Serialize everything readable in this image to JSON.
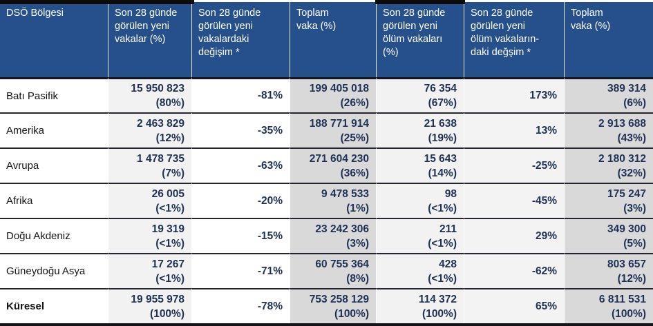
{
  "table": {
    "columns": [
      "DSÖ Bölgesi",
      "Son 28 günde\ngörülen yeni\nvakalar (%)",
      "Son 28 günde\ngörülen yeni\nvakalardaki\ndeğişim *",
      "Toplam\nvaka (%)",
      "Son 28 günde\ngörülen yeni\nölüm vakaları\n(%)",
      "Son 28 günde\ngörülen yeni\nölüm vakaların-\ndaki değşim *",
      "Toplam\nvaka (%)"
    ],
    "rows": [
      {
        "region": "Batı Pasifik",
        "new_cases": "15 950 823",
        "new_cases_share": "(80%)",
        "case_change": "-81%",
        "total_cases": "199 405 018",
        "total_cases_share": "(26%)",
        "new_deaths": "76 354",
        "new_deaths_share": "(67%)",
        "death_change": "173%",
        "total_deaths": "389 314",
        "total_deaths_share": "(6%)"
      },
      {
        "region": "Amerika",
        "new_cases": "2 463 829",
        "new_cases_share": "(12%)",
        "case_change": "-35%",
        "total_cases": "188 771 914",
        "total_cases_share": "(25%)",
        "new_deaths": "21 638",
        "new_deaths_share": "(19%)",
        "death_change": "13%",
        "total_deaths": "2 913 688",
        "total_deaths_share": "(43%)"
      },
      {
        "region": "Avrupa",
        "new_cases": "1 478 735",
        "new_cases_share": "(7%)",
        "case_change": "-63%",
        "total_cases": "271 604 230",
        "total_cases_share": "(36%)",
        "new_deaths": "15 643",
        "new_deaths_share": "(14%)",
        "death_change": "-25%",
        "total_deaths": "2 180 312",
        "total_deaths_share": "(32%)"
      },
      {
        "region": "Afrika",
        "new_cases": "26 005",
        "new_cases_share": "(<1%)",
        "case_change": "-20%",
        "total_cases": "9 478 533",
        "total_cases_share": "(1%)",
        "new_deaths": "98",
        "new_deaths_share": "(<1%)",
        "death_change": "-45%",
        "total_deaths": "175 247",
        "total_deaths_share": "(3%)"
      },
      {
        "region": "Doğu Akdeniz",
        "new_cases": "19 319",
        "new_cases_share": "(<1%)",
        "case_change": "-15%",
        "total_cases": "23 242 306",
        "total_cases_share": "(3%)",
        "new_deaths": "211",
        "new_deaths_share": "(<1%)",
        "death_change": "29%",
        "total_deaths": "349 300",
        "total_deaths_share": "(5%)"
      },
      {
        "region": "Güneydoğu Asya",
        "new_cases": "17 267",
        "new_cases_share": "(<1%)",
        "case_change": "-71%",
        "total_cases": "60 755 364",
        "total_cases_share": "(8%)",
        "new_deaths": "428",
        "new_deaths_share": "(<1%)",
        "death_change": "-62%",
        "total_deaths": "803 657",
        "total_deaths_share": "(12%)"
      },
      {
        "region": "Küresel",
        "new_cases": "19 955 978",
        "new_cases_share": "(100%)",
        "case_change": "-78%",
        "total_cases": "753 258 129",
        "total_cases_share": "(100%)",
        "new_deaths": "114 372",
        "new_deaths_share": "(100%)",
        "death_change": "65%",
        "total_deaths": "6 811 531",
        "total_deaths_share": "(100%)"
      }
    ],
    "colors": {
      "header_bg": "#26508b",
      "header_text": "#ffffff",
      "shade_light": "#f2f2f2",
      "shade_dark": "#d9d9d9",
      "number_text": "#1e3154",
      "row_line": "#23252e",
      "top_bar": "#0b0b0b"
    }
  }
}
